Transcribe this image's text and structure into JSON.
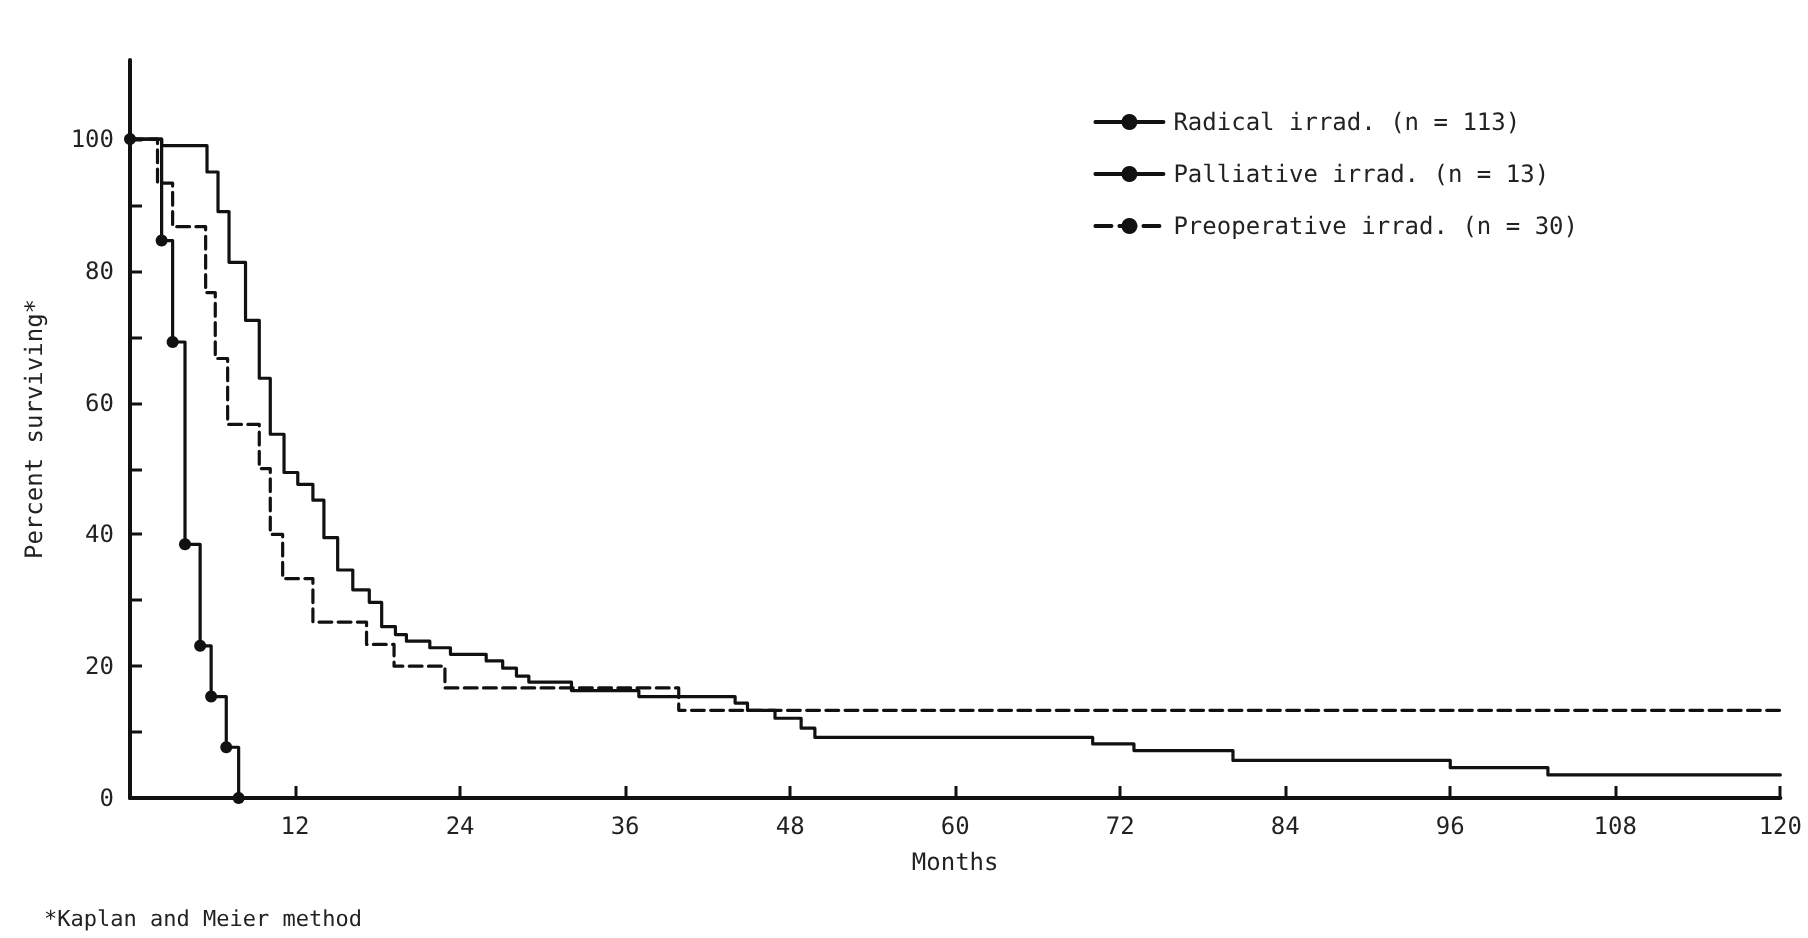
{
  "chart_data": {
    "type": "step",
    "xlabel": "Months",
    "ylabel": "Percent surviving*",
    "annotations": [
      "*Kaplan and Meier method"
    ],
    "xlim": [
      0,
      120
    ],
    "xticks": [
      12,
      24,
      36,
      48,
      60,
      72,
      84,
      96,
      108,
      120
    ],
    "ylim": [
      0,
      112
    ],
    "yticks": [
      0,
      {
        "value": 10,
        "label": null
      },
      20,
      {
        "value": 30,
        "label": null
      },
      40,
      {
        "value": 50,
        "label": null
      },
      60,
      {
        "value": 70,
        "label": null
      },
      80,
      {
        "value": 90,
        "label": null
      },
      100
    ],
    "grid": false,
    "legend": "top right",
    "series": [
      {
        "name": "Radical irrad. (n = 113)",
        "color": "#111111",
        "line_style": "solid",
        "marker": "none",
        "x": [
          0,
          2.3,
          5.6,
          6.4,
          7.2,
          8.4,
          9.4,
          10.2,
          11.2,
          12.2,
          13.3,
          14.1,
          15.1,
          16.2,
          17.4,
          18.3,
          19.3,
          20.1,
          21.8,
          23.3,
          25.9,
          27.1,
          28.1,
          29.0,
          32.1,
          37.0,
          44.0,
          44.9,
          46.9,
          48.8,
          49.8,
          70,
          73,
          80.2,
          96,
          103.1,
          120
        ],
        "values": [
          100,
          99,
          95,
          89,
          81.3,
          72.5,
          63.7,
          55.2,
          49.4,
          47.6,
          45.2,
          39.5,
          34.6,
          31.6,
          29.7,
          26,
          24.8,
          23.8,
          22.8,
          21.8,
          20.8,
          19.7,
          18.5,
          17.6,
          16.3,
          15.4,
          14.4,
          13.3,
          12.1,
          10.6,
          9.2,
          8.2,
          7.2,
          5.7,
          4.6,
          3.5,
          3.5
        ]
      },
      {
        "name": "Palliative irrad. (n = 13)",
        "color": "#111111",
        "line_style": "solid",
        "marker": "circle",
        "x": [
          0,
          2.3,
          3.1,
          4.0,
          5.1,
          5.9,
          7.0,
          7.9
        ],
        "values": [
          100,
          84.6,
          69.2,
          38.5,
          23.1,
          15.4,
          7.7,
          0
        ]
      },
      {
        "name": "Preoperative irrad. (n = 30)",
        "color": "#111111",
        "line_style": "dashed",
        "marker": "none",
        "x": [
          0,
          2.0,
          3.1,
          5.5,
          6.2,
          7.1,
          9.4,
          10.2,
          11.1,
          13.3,
          17.2,
          19.2,
          22.9,
          39.9,
          120
        ],
        "values": [
          100,
          93.3,
          86.7,
          76.7,
          66.7,
          56.7,
          50,
          40,
          33.3,
          26.7,
          23.3,
          20,
          16.7,
          13.3,
          13.3
        ]
      }
    ]
  }
}
